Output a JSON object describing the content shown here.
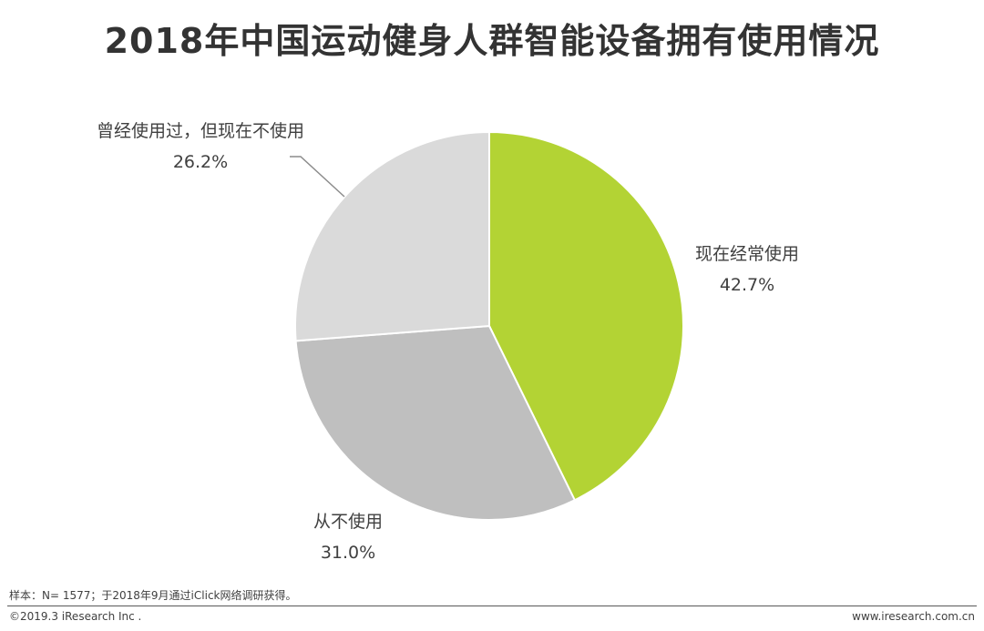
{
  "title": "2018年中国运动健身人群智能设备拥有使用情况",
  "chart_data": {
    "type": "pie",
    "slices": [
      {
        "label": "现在经常使用",
        "value": 42.7,
        "display": "42.7%",
        "color": "#b3d334"
      },
      {
        "label": "从不使用",
        "value": 31.0,
        "display": "31.0%",
        "color": "#bfbfbf"
      },
      {
        "label": "曾经使用过，但现在不使用",
        "value": 26.2,
        "display": "26.2%",
        "color": "#dadada"
      }
    ],
    "start": "12 o'clock",
    "direction": "clockwise"
  },
  "footer": {
    "note": "样本：N= 1577；于2018年9月通过iClick网络调研获得。",
    "copyright": "©2019.3 iResearch Inc .",
    "website": "www.iresearch.com.cn"
  }
}
